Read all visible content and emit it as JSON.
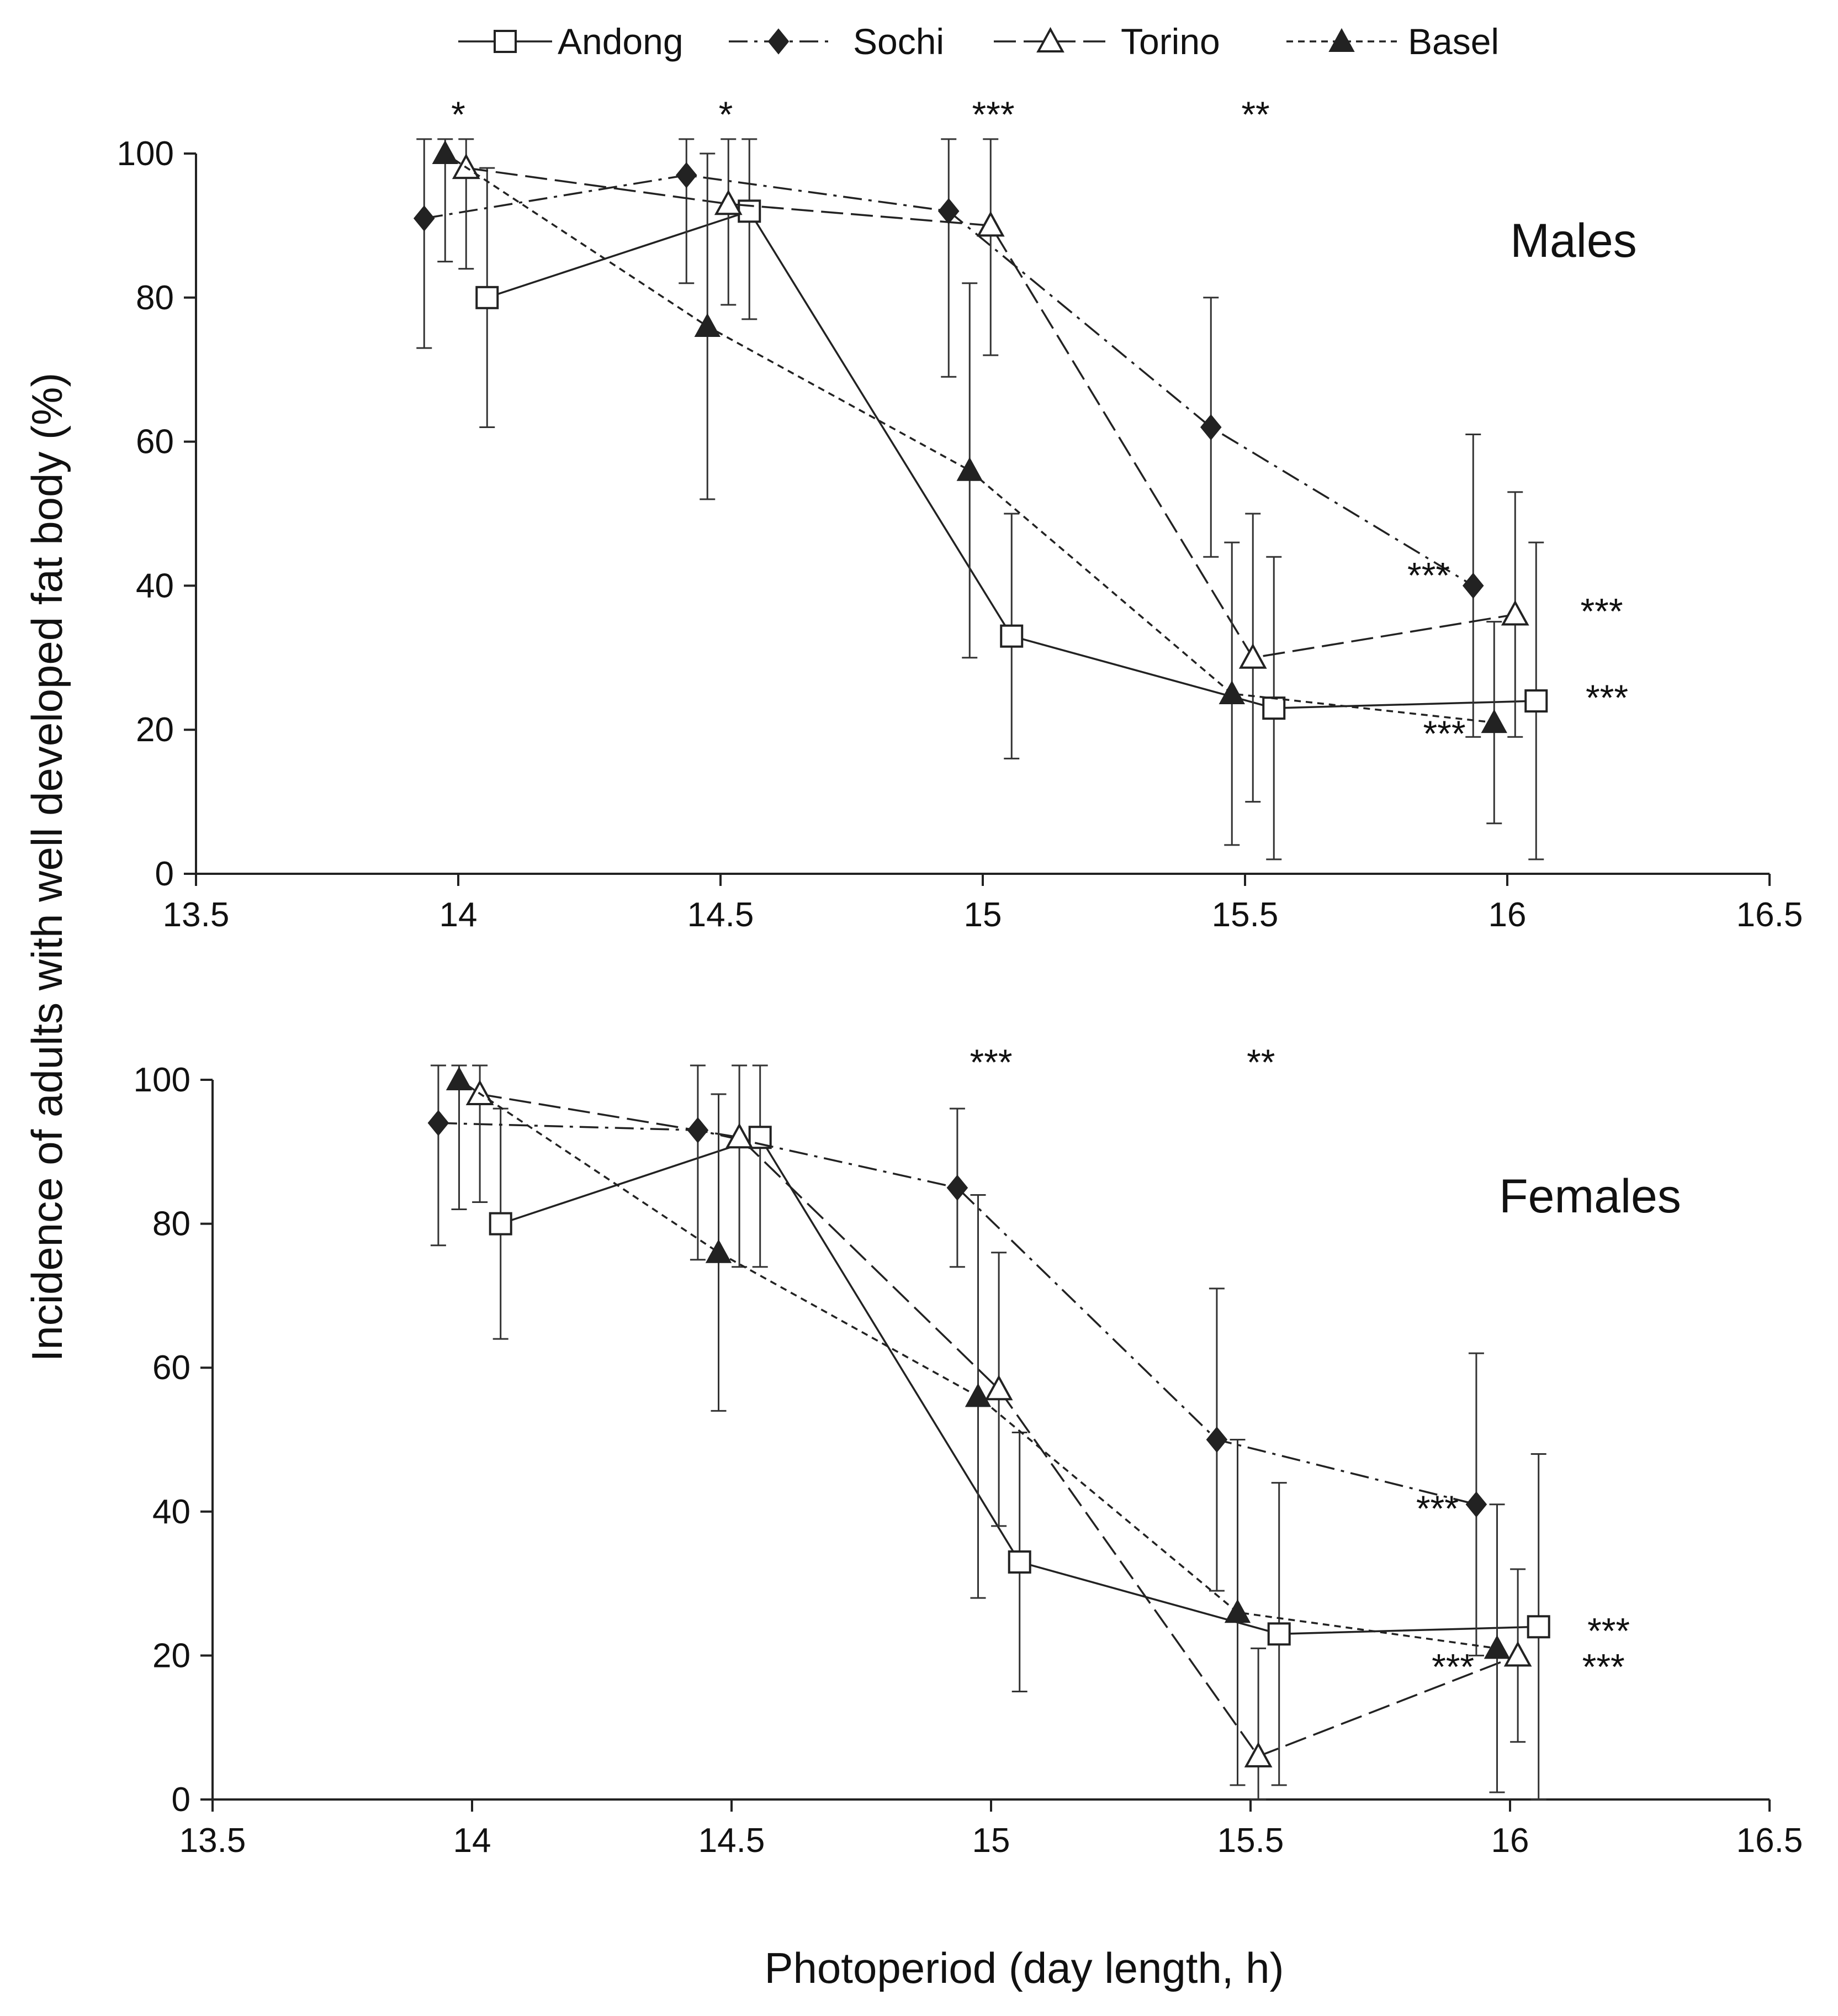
{
  "chart_data": {
    "type": "line",
    "xlabel": "Photoperiod (day length, h)",
    "ylabel": "Incidence of adults with well developed fat body (%)",
    "legend": {
      "placement": "top-center",
      "entries": [
        "Andong",
        "Sochi",
        "Torino",
        "Basel"
      ]
    },
    "series_styles": [
      {
        "name": "Andong",
        "marker": "open-square",
        "dash": "solid",
        "color": "#222222"
      },
      {
        "name": "Sochi",
        "marker": "filled-diamond",
        "dash": "dash-dot",
        "color": "#222222"
      },
      {
        "name": "Torino",
        "marker": "open-triangle",
        "dash": "long-dash",
        "color": "#222222"
      },
      {
        "name": "Basel",
        "marker": "filled-triangle",
        "dash": "short-dash",
        "color": "#222222"
      }
    ],
    "panels": [
      {
        "label": "Males",
        "xlim": [
          13.5,
          16.5
        ],
        "ylim": [
          0,
          100
        ],
        "xticks": [
          "13.5",
          "14",
          "14.5",
          "15",
          "15.5",
          "16",
          "16.5"
        ],
        "yticks": [
          "0",
          "20",
          "40",
          "60",
          "80",
          "100"
        ],
        "grid": false,
        "x": [
          14,
          14.5,
          15,
          15.5,
          16
        ],
        "series": [
          {
            "name": "Andong",
            "values": [
              80,
              92,
              33,
              23,
              24
            ],
            "errors": [
              18,
              15,
              17,
              21,
              22
            ]
          },
          {
            "name": "Sochi",
            "values": [
              91,
              97,
              92,
              62,
              40
            ],
            "errors": [
              18,
              15,
              23,
              18,
              21
            ]
          },
          {
            "name": "Torino",
            "values": [
              98,
              93,
              90,
              30,
              36
            ],
            "errors": [
              14,
              14,
              18,
              20,
              17
            ]
          },
          {
            "name": "Basel",
            "values": [
              100,
              76,
              56,
              25,
              21
            ],
            "errors": [
              15,
              24,
              26,
              21,
              14
            ]
          }
        ],
        "annotations": [
          {
            "text": "*",
            "x": 14.0,
            "y": 106
          },
          {
            "text": "*",
            "x": 14.51,
            "y": 106
          },
          {
            "text": "***",
            "x": 15.02,
            "y": 106
          },
          {
            "text": "**",
            "x": 15.52,
            "y": 106
          },
          {
            "text": "***",
            "x": 15.85,
            "y": 42
          },
          {
            "text": "***",
            "x": 16.18,
            "y": 37
          },
          {
            "text": "***",
            "x": 15.88,
            "y": 20
          },
          {
            "text": "***",
            "x": 16.19,
            "y": 25
          }
        ]
      },
      {
        "label": "Females",
        "xlim": [
          13.5,
          16.5
        ],
        "ylim": [
          0,
          100
        ],
        "xticks": [
          "13.5",
          "14",
          "14.5",
          "15",
          "15.5",
          "16",
          "16.5"
        ],
        "yticks": [
          "0",
          "20",
          "40",
          "60",
          "80",
          "100"
        ],
        "grid": false,
        "x": [
          14,
          14.5,
          15,
          15.5,
          16
        ],
        "series": [
          {
            "name": "Andong",
            "values": [
              80,
              92,
              33,
              23,
              24
            ],
            "errors": [
              16,
              18,
              18,
              21,
              24
            ]
          },
          {
            "name": "Sochi",
            "values": [
              94,
              93,
              85,
              50,
              41
            ],
            "errors": [
              17,
              18,
              11,
              21,
              21
            ]
          },
          {
            "name": "Torino",
            "values": [
              98,
              92,
              57,
              6,
              20
            ],
            "errors": [
              15,
              18,
              19,
              15,
              12
            ]
          },
          {
            "name": "Basel",
            "values": [
              100,
              76,
              56,
              26,
              21
            ],
            "errors": [
              18,
              22,
              28,
              24,
              20
            ]
          }
        ],
        "annotations": [
          {
            "text": "***",
            "x": 15.0,
            "y": 103
          },
          {
            "text": "**",
            "x": 15.52,
            "y": 103
          },
          {
            "text": "***",
            "x": 15.86,
            "y": 41
          },
          {
            "text": "***",
            "x": 16.19,
            "y": 24
          },
          {
            "text": "***",
            "x": 15.89,
            "y": 19
          },
          {
            "text": "***",
            "x": 16.18,
            "y": 19
          }
        ]
      }
    ]
  }
}
